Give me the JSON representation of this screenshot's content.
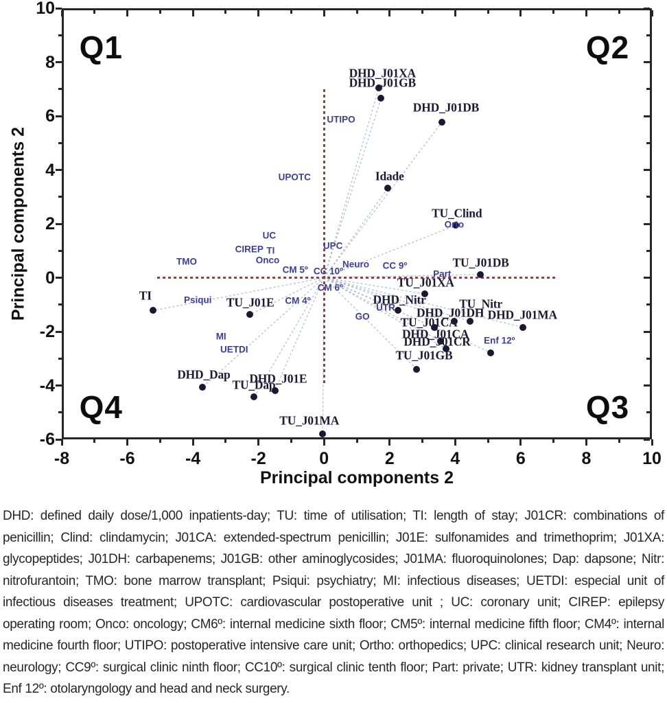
{
  "chart_data": {
    "type": "scatter",
    "title": "",
    "xlabel": "Principal components 2",
    "ylabel": "Principal components 2",
    "xlim": [
      -8,
      10
    ],
    "ylim": [
      -6,
      10
    ],
    "x_ticks": [
      -8,
      -6,
      -4,
      -2,
      0,
      2,
      4,
      6,
      8,
      10
    ],
    "y_ticks": [
      10,
      8,
      6,
      4,
      2,
      0,
      -2,
      -4,
      -6
    ],
    "grid": false,
    "legend": "none",
    "colors": {
      "reference_line": "#a33b3b",
      "vector_line": "#b5bdd2",
      "point": "#191932",
      "variable_label": "#1b1b36",
      "ward_label": "#3a3f94"
    },
    "quadrant_labels": [
      {
        "label": "Q1",
        "x": -6.8,
        "y": 8.55
      },
      {
        "label": "Q2",
        "x": 8.65,
        "y": 8.55
      },
      {
        "label": "Q3",
        "x": 8.65,
        "y": -4.8
      },
      {
        "label": "Q4",
        "x": -6.8,
        "y": -4.8
      }
    ],
    "ref_lines": {
      "horizontal": {
        "y": 0,
        "x1": -5.1,
        "x2": 7.05
      },
      "vertical": {
        "x": 0,
        "y1": -4.0,
        "y2": 7.0
      }
    },
    "variable_points": [
      {
        "label": "DHD_J01XA",
        "x": 1.67,
        "y": 7.04,
        "lx": 1.78,
        "ly": 7.58
      },
      {
        "label": "DHD_J01GB",
        "x": 1.74,
        "y": 6.66,
        "lx": 1.78,
        "ly": 7.22
      },
      {
        "label": "DHD_J01DB",
        "x": 3.6,
        "y": 5.78,
        "lx": 3.72,
        "ly": 6.3
      },
      {
        "label": "Idade",
        "x": 1.95,
        "y": 3.33,
        "lx": 2.0,
        "ly": 3.75
      },
      {
        "label": "TU_Clind",
        "x": 4.02,
        "y": 1.95,
        "lx": 4.05,
        "ly": 2.38
      },
      {
        "label": "TU_J01DB",
        "x": 4.76,
        "y": 0.12,
        "lx": 4.78,
        "ly": 0.55
      },
      {
        "label": "TU_J01XA",
        "x": 3.08,
        "y": -0.6,
        "lx": 3.1,
        "ly": -0.2
      },
      {
        "label": "TI",
        "x": -5.21,
        "y": -1.22,
        "lx": -5.45,
        "ly": -0.68
      },
      {
        "label": "TU_J01E",
        "x": -2.26,
        "y": -1.37,
        "lx": -2.25,
        "ly": -0.92
      },
      {
        "label": "DHD_Nitr",
        "x": 2.26,
        "y": -1.21,
        "lx": 2.3,
        "ly": -0.82
      },
      {
        "label": "TU_Nitr",
        "x": 4.45,
        "y": -1.61,
        "lx": 4.78,
        "ly": -0.98
      },
      {
        "label": "DHD_J01DH",
        "x": 3.98,
        "y": -1.62,
        "lx": 3.85,
        "ly": -1.32
      },
      {
        "label": "DHD_J01MA",
        "x": 6.07,
        "y": -1.85,
        "lx": 6.05,
        "ly": -1.38
      },
      {
        "label": "TU_J01CA",
        "x": 3.37,
        "y": -1.85,
        "lx": 3.2,
        "ly": -1.67
      },
      {
        "label": "DHD_J01CA",
        "x": 3.55,
        "y": -2.35,
        "lx": 3.4,
        "ly": -2.1
      },
      {
        "label": "DHD_J01CR",
        "x": 3.73,
        "y": -2.64,
        "lx": 3.45,
        "ly": -2.38
      },
      {
        "label": "TU_J01GB",
        "x": 2.83,
        "y": -3.4,
        "lx": 3.05,
        "ly": -2.9
      },
      {
        "label": "",
        "x": 5.09,
        "y": -2.78,
        "lx": null,
        "ly": null
      },
      {
        "label": "DHD_Dap",
        "x": -3.7,
        "y": -4.06,
        "lx": -3.67,
        "ly": -3.6
      },
      {
        "label": "TU_Dap",
        "x": -2.13,
        "y": -4.43,
        "lx": -2.14,
        "ly": -3.98
      },
      {
        "label": "DHD_J01E",
        "x": -1.5,
        "y": -4.18,
        "lx": -1.4,
        "ly": -3.77
      },
      {
        "label": "TU_J01MA",
        "x": -0.04,
        "y": -5.8,
        "lx": -0.45,
        "ly": -5.32
      }
    ],
    "ward_labels": [
      {
        "label": "UTIPO",
        "x": 0.52,
        "y": 5.88
      },
      {
        "label": "UPOTC",
        "x": -0.9,
        "y": 3.73
      },
      {
        "label": "UC",
        "x": -1.67,
        "y": 1.57
      },
      {
        "label": "CIREP",
        "x": -2.28,
        "y": 1.06
      },
      {
        "label": "TI",
        "x": -1.63,
        "y": 1.01
      },
      {
        "label": "Onco",
        "x": -1.72,
        "y": 0.65
      },
      {
        "label": "TMO",
        "x": -4.19,
        "y": 0.6
      },
      {
        "label": "CM 5º",
        "x": -0.88,
        "y": 0.29
      },
      {
        "label": "UPC",
        "x": 0.27,
        "y": 1.19
      },
      {
        "label": "CC 10º",
        "x": 0.13,
        "y": 0.24
      },
      {
        "label": "Neuro",
        "x": 0.97,
        "y": 0.5
      },
      {
        "label": "CC 9º",
        "x": 2.16,
        "y": 0.45
      },
      {
        "label": "CM 6º",
        "x": 0.19,
        "y": -0.37
      },
      {
        "label": "Psiqui",
        "x": -3.85,
        "y": -0.83
      },
      {
        "label": "CM 4º",
        "x": -0.8,
        "y": -0.86
      },
      {
        "label": "MI",
        "x": -3.14,
        "y": -2.18
      },
      {
        "label": "UETDI",
        "x": -2.74,
        "y": -2.67
      },
      {
        "label": "GO",
        "x": 1.17,
        "y": -1.45
      },
      {
        "label": "UTR",
        "x": 1.88,
        "y": -1.12
      },
      {
        "label": "Orto",
        "x": 3.97,
        "y": 1.97
      },
      {
        "label": "Part",
        "x": 3.6,
        "y": 0.15
      },
      {
        "label": "Enf 12º",
        "x": 5.35,
        "y": -2.32
      }
    ]
  },
  "caption": "DHD: defined daily dose/1,000 inpatients-day; TU: time of utilisation; TI: length of stay; J01CR: combinations of penicillin; Clind: clindamycin; J01CA: extended-spectrum penicillin; J01E: sulfonamides and trimethoprim; J01XA: glycopeptides; J01DH: carbapenems; J01GB: other aminoglycosides; J01MA: fluoroquinolones; Dap: dapsone; Nitr: nitrofurantoin; TMO: bone marrow transplant; Psiqui: psychiatry; MI: infectious diseases; UETDI: especial unit of infectious diseases treatment; UPOTC: cardiovascular postoperative unit ; UC: coronary unit; CIREP: epilepsy operating room; Onco: oncology; CM6º: internal medicine sixth floor; CM5º: internal medicine fifth floor; CM4º: internal medicine fourth floor; UTIPO: postoperative intensive care unit; Ortho: orthopedics; UPC: clinical research unit; Neuro: neurology; CC9º: surgical clinic ninth floor; CC10º: surgical clinic tenth floor; Part: private; UTR: kidney transplant unit; Enf 12º: otolaryngology and head and neck surgery."
}
